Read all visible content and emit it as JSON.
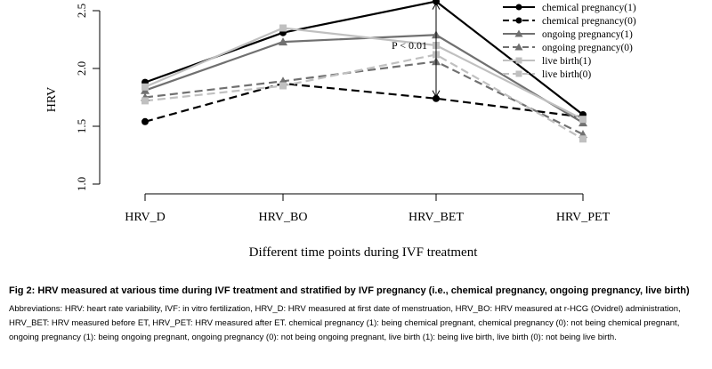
{
  "chart_data": {
    "type": "line",
    "categories": [
      "HRV_D",
      "HRV_BO",
      "HRV_BET",
      "HRV_PET"
    ],
    "xlabel": "Different time points during IVF treatment",
    "ylabel": "HRV",
    "ylim": [
      1.0,
      2.5
    ],
    "yticks": [
      "1.0",
      "1.5",
      "2.0",
      "2.5"
    ],
    "grid": false,
    "legend_position": "top-right",
    "annotation": {
      "text": "P < 0.01",
      "category": "HRV_BET",
      "y_from": 1.74,
      "y_to": 2.58
    },
    "series": [
      {
        "name": "chemical pregnancy(1)",
        "values": [
          1.88,
          2.31,
          2.58,
          1.6
        ],
        "color": "#000000",
        "dash": "solid",
        "marker": "circle"
      },
      {
        "name": "chemical pregnancy(0)",
        "values": [
          1.54,
          1.87,
          1.74,
          1.58
        ],
        "color": "#000000",
        "dash": "dashed",
        "marker": "circle"
      },
      {
        "name": "ongoing pregnancy(1)",
        "values": [
          1.81,
          2.23,
          2.29,
          1.53
        ],
        "color": "#707070",
        "dash": "solid",
        "marker": "triangle"
      },
      {
        "name": "ongoing pregnancy(0)",
        "values": [
          1.75,
          1.89,
          2.06,
          1.43
        ],
        "color": "#707070",
        "dash": "dashed",
        "marker": "triangle"
      },
      {
        "name": "live birth(1)",
        "values": [
          1.84,
          2.35,
          2.2,
          1.56
        ],
        "color": "#c0c0c0",
        "dash": "solid",
        "marker": "square"
      },
      {
        "name": "live birth(0)",
        "values": [
          1.72,
          1.85,
          2.12,
          1.39
        ],
        "color": "#c0c0c0",
        "dash": "dashed",
        "marker": "square"
      }
    ]
  },
  "caption": {
    "title": "Fig 2: HRV measured at various time during IVF treatment and stratified by IVF pregnancy (i.e., chemical pregnancy, ongoing pregnancy, live birth)",
    "abbreviations": "Abbreviations: HRV: heart rate variability, IVF: in vitro fertilization, HRV_D: HRV measured at first date of menstruation, HRV_BO: HRV measured at r-HCG (Ovidrel) administration, HRV_BET: HRV measured before ET, HRV_PET: HRV measured after ET. chemical pregnancy (1): being chemical pregnant, chemical pregnancy (0): not being chemical pregnant, ongoing pregnancy (1): being ongoing pregnant, ongoing pregnancy (0): not being ongoing pregnant, live birth (1): being live birth, live birth (0): not being live birth."
  }
}
